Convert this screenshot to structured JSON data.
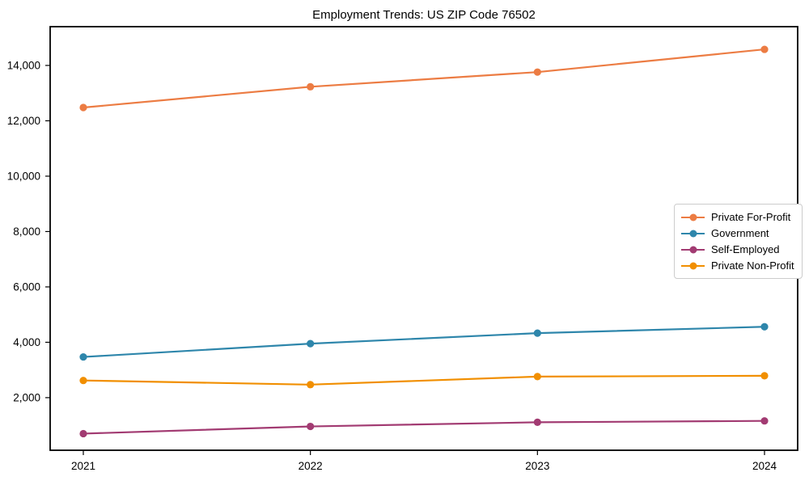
{
  "chart_data": {
    "type": "line",
    "title": "Employment Trends: US ZIP Code 76502",
    "x": [
      "2021",
      "2022",
      "2023",
      "2024"
    ],
    "series": [
      {
        "name": "Private For-Profit",
        "color": "#EC7C43",
        "values": [
          12480,
          13230,
          13760,
          14580
        ]
      },
      {
        "name": "Government",
        "color": "#2E86AB",
        "values": [
          3470,
          3950,
          4330,
          4560
        ]
      },
      {
        "name": "Self-Employed",
        "color": "#A23B72",
        "values": [
          700,
          960,
          1110,
          1160
        ]
      },
      {
        "name": "Private Non-Profit",
        "color": "#F18F01",
        "values": [
          2620,
          2470,
          2760,
          2790
        ]
      }
    ],
    "xlabel": "",
    "ylabel": "",
    "ylim": [
      100,
      15400
    ],
    "yticks": [
      2000,
      4000,
      6000,
      8000,
      10000,
      12000,
      14000
    ],
    "grid": false,
    "legend_position": "center right",
    "marker": "circle",
    "axis_color": "#000000",
    "background_color": "#ffffff"
  }
}
